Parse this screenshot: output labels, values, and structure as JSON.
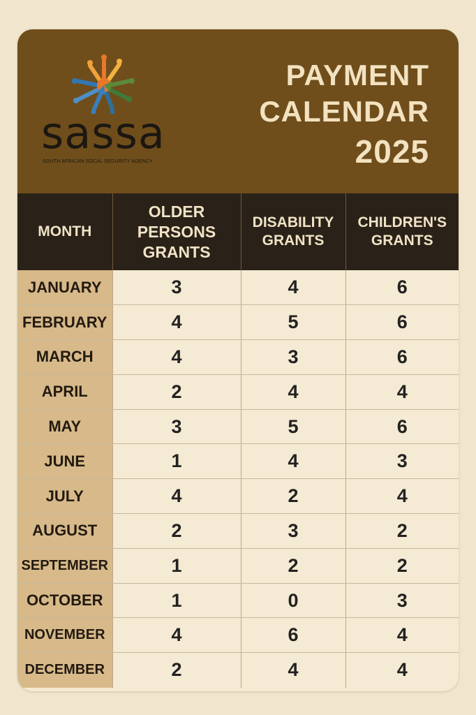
{
  "logo": {
    "wordmark": "sassa",
    "subtitle": "SOUTH AFRICAN SOCAL SEGURITY AGENCY"
  },
  "title": {
    "line1": "PAYMENT",
    "line2": "CALENDAR",
    "year": "2025"
  },
  "table": {
    "headers": {
      "month": "MONTH",
      "older_1": "OLDER",
      "older_2": "PERSONS",
      "older_3": "GRANTS",
      "disability_1": "DISABILITY",
      "disability_2": "GRANTS",
      "children_1": "CHILDREN'S",
      "children_2": "GRANTS"
    },
    "rows": [
      {
        "month": "JANUARY",
        "older": "3",
        "disability": "4",
        "children": "6"
      },
      {
        "month": "FEBRUARY",
        "older": "4",
        "disability": "5",
        "children": "6"
      },
      {
        "month": "MARCH",
        "older": "4",
        "disability": "3",
        "children": "6"
      },
      {
        "month": "APRIL",
        "older": "2",
        "disability": "4",
        "children": "4"
      },
      {
        "month": "MAY",
        "older": "3",
        "disability": "5",
        "children": "6"
      },
      {
        "month": "JUNE",
        "older": "1",
        "disability": "4",
        "children": "3"
      },
      {
        "month": "JULY",
        "older": "4",
        "disability": "2",
        "children": "4"
      },
      {
        "month": "AUGUST",
        "older": "2",
        "disability": "3",
        "children": "2"
      },
      {
        "month": "SEPTEMBER",
        "older": "1",
        "disability": "2",
        "children": "2"
      },
      {
        "month": "OCTOBER",
        "older": "1",
        "disability": "0",
        "children": "3"
      },
      {
        "month": "NOVEMBER",
        "older": "4",
        "disability": "6",
        "children": "4"
      },
      {
        "month": "DECEMBER",
        "older": "2",
        "disability": "4",
        "children": "4"
      }
    ]
  },
  "colors": {
    "header_band": "#6f4e1c",
    "table_header": "#2a2118",
    "month_column": "#d7b98a",
    "cell_background": "#f5ead3",
    "title_text": "#f3e2c0"
  }
}
